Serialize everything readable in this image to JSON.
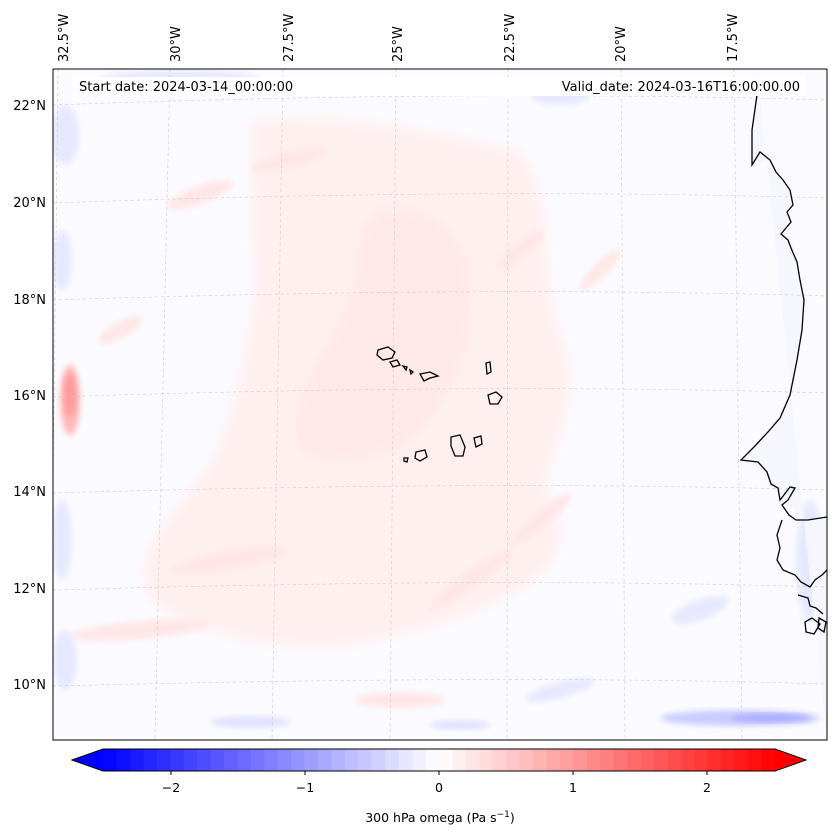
{
  "map": {
    "start_date_label": "Start date: 2024-03-14_00:00:00",
    "valid_date_label": "Valid_date: 2024-03-16T16:00:00.00",
    "lon_labels": [
      "32.5°W",
      "30°W",
      "27.5°W",
      "25°W",
      "22.5°W",
      "20°W",
      "17.5°W"
    ],
    "lat_labels": [
      "22°N",
      "20°N",
      "18°N",
      "16°N",
      "14°N",
      "12°N",
      "10°N"
    ],
    "field": "300 hPa omega",
    "gridlines": true
  },
  "colorbar": {
    "label_main": "300 hPa omega (Pa s",
    "label_exp": "−1",
    "label_close": ")",
    "ticks": [
      "−2",
      "−1",
      "0",
      "1",
      "2"
    ],
    "range": [
      -2.5,
      2.5
    ],
    "extend": "both",
    "cmap": "bwr",
    "color_low": "#0000ff",
    "color_mid": "#ffffff",
    "color_high": "#ff0000"
  }
}
